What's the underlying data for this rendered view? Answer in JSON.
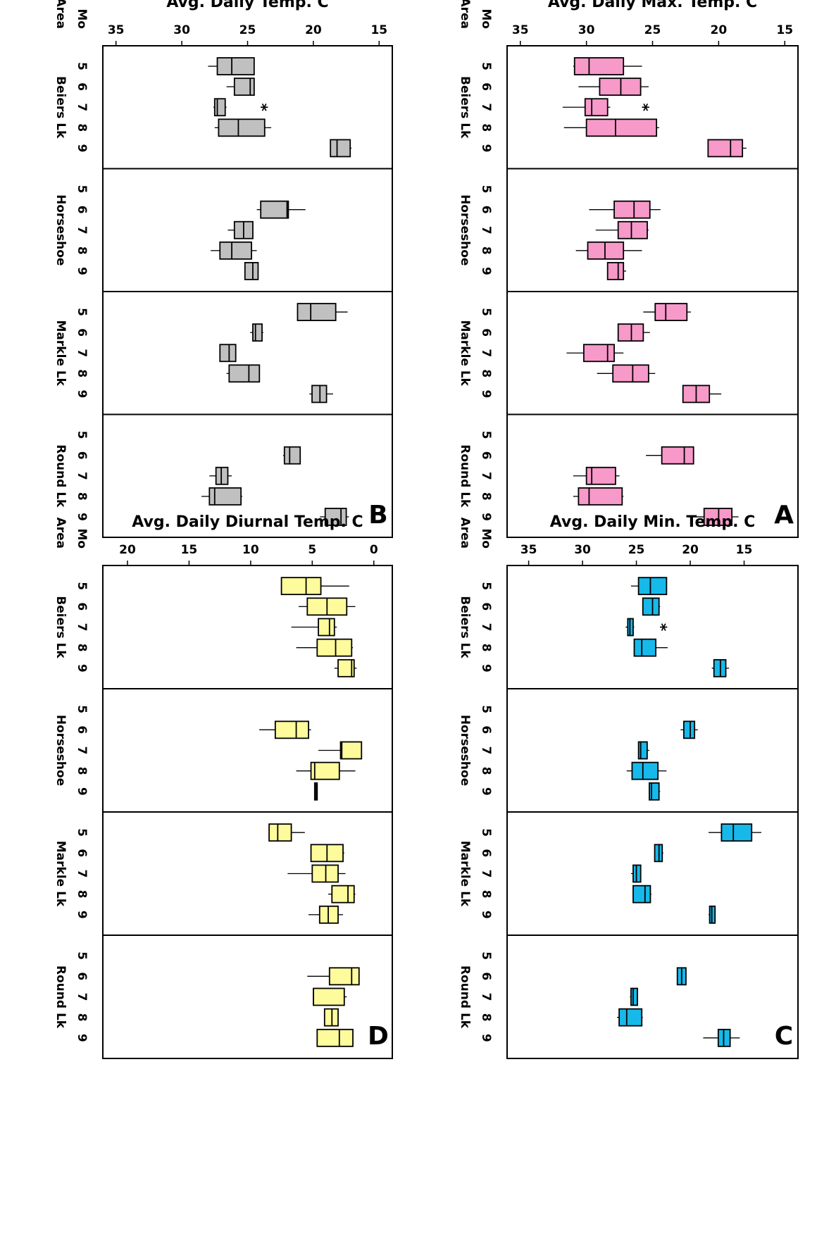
{
  "chart_data": [
    {
      "panel_label": "A",
      "type": "boxplot",
      "ylabel": "Avg. Daily Max. Temp. C",
      "xlabel_rows": [
        "Mo",
        "Area"
      ],
      "ylim": [
        14,
        36
      ],
      "yticks": [
        15,
        20,
        25,
        30,
        35
      ],
      "box_color": "#f799c9",
      "areas": [
        {
          "name": "Beiers Lk",
          "months": [
            {
              "mo": "5",
              "low": 25.8,
              "q1": 27.2,
              "median": 29.8,
              "q3": 30.9,
              "high": 31.0
            },
            {
              "mo": "6",
              "low": 25.3,
              "q1": 25.9,
              "median": 27.4,
              "q3": 29.0,
              "high": 30.6
            },
            {
              "mo": "7",
              "low": 28.2,
              "q1": 28.4,
              "median": 29.6,
              "q3": 30.1,
              "high": 31.8,
              "outliers": [
                25.8
              ]
            },
            {
              "mo": "8",
              "low": 24.5,
              "q1": 24.7,
              "median": 27.8,
              "q3": 30.0,
              "high": 31.7
            },
            {
              "mo": "9",
              "low": 17.9,
              "q1": 18.2,
              "median": 19.1,
              "q3": 20.8,
              "high": 20.8
            }
          ]
        },
        {
          "name": "Horseshoe",
          "months": [
            {
              "mo": "5"
            },
            {
              "mo": "6",
              "low": 24.4,
              "q1": 25.2,
              "median": 26.4,
              "q3": 27.9,
              "high": 29.8
            },
            {
              "mo": "7",
              "low": 25.3,
              "q1": 25.4,
              "median": 26.6,
              "q3": 27.6,
              "high": 29.3
            },
            {
              "mo": "8",
              "low": 25.8,
              "q1": 27.2,
              "median": 28.6,
              "q3": 29.9,
              "high": 30.8
            },
            {
              "mo": "9",
              "low": 27.0,
              "q1": 27.2,
              "median": 27.6,
              "q3": 28.4,
              "high": 28.4
            }
          ]
        },
        {
          "name": "Markle Lk",
          "months": [
            {
              "mo": "5",
              "low": 22.1,
              "q1": 22.4,
              "median": 24.0,
              "q3": 24.8,
              "high": 25.7
            },
            {
              "mo": "6",
              "low": 25.2,
              "q1": 25.7,
              "median": 26.6,
              "q3": 27.6,
              "high": 27.6
            },
            {
              "mo": "7",
              "low": 27.2,
              "q1": 27.9,
              "median": 28.4,
              "q3": 30.2,
              "high": 31.5
            },
            {
              "mo": "8",
              "low": 24.8,
              "q1": 25.3,
              "median": 26.5,
              "q3": 28.0,
              "high": 29.2
            },
            {
              "mo": "9",
              "low": 19.8,
              "q1": 20.7,
              "median": 21.7,
              "q3": 22.7,
              "high": 22.7
            }
          ]
        },
        {
          "name": "Round Lk",
          "months": [
            {
              "mo": "5"
            },
            {
              "mo": "6",
              "low": 21.9,
              "q1": 21.9,
              "median": 22.6,
              "q3": 24.3,
              "high": 25.5
            },
            {
              "mo": "7",
              "low": 27.5,
              "q1": 27.8,
              "median": 29.6,
              "q3": 30.0,
              "high": 31.0
            },
            {
              "mo": "8",
              "low": 27.2,
              "q1": 27.3,
              "median": 29.8,
              "q3": 30.6,
              "high": 31.0
            },
            {
              "mo": "9",
              "low": 18.5,
              "q1": 19.0,
              "median": 20.0,
              "q3": 21.1,
              "high": 22.3
            }
          ]
        }
      ]
    },
    {
      "panel_label": "B",
      "type": "boxplot",
      "ylabel": "Avg. Daily Temp. C",
      "xlabel_rows": [
        "Mo",
        "Area"
      ],
      "ylim": [
        14,
        36
      ],
      "yticks": [
        15,
        20,
        25,
        30,
        35
      ],
      "box_color": "#c0c0c0",
      "areas": [
        {
          "name": "Beiers Lk",
          "months": [
            {
              "mo": "5",
              "low": 24.5,
              "q1": 24.5,
              "median": 26.2,
              "q3": 27.3,
              "high": 28.0
            },
            {
              "mo": "6",
              "low": 24.5,
              "q1": 24.5,
              "median": 24.8,
              "q3": 26.0,
              "high": 26.6
            },
            {
              "mo": "7",
              "low": 26.6,
              "q1": 26.7,
              "median": 27.3,
              "q3": 27.5,
              "high": 27.6,
              "outliers": [
                24.0
              ]
            },
            {
              "mo": "8",
              "low": 23.2,
              "q1": 23.7,
              "median": 25.7,
              "q3": 27.2,
              "high": 27.5
            },
            {
              "mo": "9",
              "low": 17.1,
              "q1": 17.2,
              "median": 18.2,
              "q3": 18.7,
              "high": 18.7
            }
          ]
        },
        {
          "name": "Horseshoe",
          "months": [
            {
              "mo": "5"
            },
            {
              "mo": "6",
              "low": 20.6,
              "q1": 21.9,
              "median": 22.0,
              "q3": 24.0,
              "high": 24.3
            },
            {
              "mo": "7",
              "low": 24.6,
              "q1": 24.6,
              "median": 25.3,
              "q3": 26.0,
              "high": 26.5
            },
            {
              "mo": "8",
              "low": 24.3,
              "q1": 24.7,
              "median": 26.2,
              "q3": 27.1,
              "high": 27.8
            },
            {
              "mo": "9",
              "low": 24.2,
              "q1": 24.2,
              "median": 24.6,
              "q3": 25.2,
              "high": 25.2
            }
          ]
        },
        {
          "name": "Markle Lk",
          "months": [
            {
              "mo": "5",
              "low": 17.4,
              "q1": 18.3,
              "median": 20.2,
              "q3": 21.2,
              "high": 21.2
            },
            {
              "mo": "6",
              "low": 23.8,
              "q1": 23.9,
              "median": 24.4,
              "q3": 24.6,
              "high": 24.8
            },
            {
              "mo": "7",
              "low": 25.9,
              "q1": 25.9,
              "median": 26.4,
              "q3": 27.1,
              "high": 27.1
            },
            {
              "mo": "8",
              "low": 24.1,
              "q1": 24.1,
              "median": 24.9,
              "q3": 26.4,
              "high": 26.6
            },
            {
              "mo": "9",
              "low": 18.5,
              "q1": 19.0,
              "median": 19.5,
              "q3": 20.1,
              "high": 20.3
            }
          ]
        },
        {
          "name": "Round Lk",
          "months": [
            {
              "mo": "5"
            },
            {
              "mo": "6",
              "low": 21.0,
              "q1": 21.0,
              "median": 21.8,
              "q3": 22.2,
              "high": 22.3
            },
            {
              "mo": "7",
              "low": 26.2,
              "q1": 26.5,
              "median": 27.0,
              "q3": 27.4,
              "high": 27.9
            },
            {
              "mo": "8",
              "low": 25.4,
              "q1": 25.5,
              "median": 27.5,
              "q3": 27.9,
              "high": 28.5
            },
            {
              "mo": "9",
              "low": 17.3,
              "q1": 17.5,
              "median": 17.9,
              "q3": 19.1,
              "high": 19.5
            }
          ]
        }
      ]
    },
    {
      "panel_label": "C",
      "type": "boxplot",
      "ylabel": "Avg. Daily Min. Temp. C",
      "xlabel_rows": [
        "Mo",
        "Area"
      ],
      "ylim": [
        10,
        37
      ],
      "yticks": [
        15,
        20,
        25,
        30,
        35
      ],
      "box_color": "#17b9ea",
      "areas": [
        {
          "name": "Beiers Lk",
          "months": [
            {
              "mo": "5",
              "low": 22.2,
              "q1": 22.2,
              "median": 23.7,
              "q3": 24.8,
              "high": 25.5
            },
            {
              "mo": "6",
              "low": 22.8,
              "q1": 22.9,
              "median": 23.5,
              "q3": 24.4,
              "high": 24.4
            },
            {
              "mo": "7",
              "low": 25.2,
              "q1": 25.3,
              "median": 25.6,
              "q3": 25.8,
              "high": 26.0,
              "outliers": [
                22.8
              ]
            },
            {
              "mo": "8",
              "low": 22.1,
              "q1": 23.2,
              "median": 24.5,
              "q3": 25.2,
              "high": 25.2
            },
            {
              "mo": "9",
              "low": 16.4,
              "q1": 16.7,
              "median": 17.2,
              "q3": 17.8,
              "high": 18.0
            }
          ]
        },
        {
          "name": "Horseshoe",
          "months": [
            {
              "mo": "5"
            },
            {
              "mo": "6",
              "low": 19.3,
              "q1": 19.6,
              "median": 20.0,
              "q3": 20.6,
              "high": 20.9
            },
            {
              "mo": "7",
              "low": 23.8,
              "q1": 24.0,
              "median": 24.6,
              "q3": 24.8,
              "high": 24.8
            },
            {
              "mo": "8",
              "low": 22.2,
              "q1": 23.0,
              "median": 24.4,
              "q3": 25.4,
              "high": 25.9
            },
            {
              "mo": "9",
              "low": 22.8,
              "q1": 22.9,
              "median": 23.6,
              "q3": 23.8,
              "high": 23.8
            }
          ]
        },
        {
          "name": "Markle Lk",
          "months": [
            {
              "mo": "5",
              "low": 13.4,
              "q1": 14.3,
              "median": 16.0,
              "q3": 17.1,
              "high": 18.3
            },
            {
              "mo": "6",
              "low": 22.5,
              "q1": 22.6,
              "median": 22.9,
              "q3": 23.3,
              "high": 23.3
            },
            {
              "mo": "7",
              "low": 24.6,
              "q1": 24.6,
              "median": 25.0,
              "q3": 25.3,
              "high": 25.5
            },
            {
              "mo": "8",
              "low": 23.6,
              "q1": 23.7,
              "median": 24.2,
              "q3": 25.3,
              "high": 25.3
            },
            {
              "mo": "9",
              "low": 17.7,
              "q1": 17.7,
              "median": 18.0,
              "q3": 18.2,
              "high": 18.3
            }
          ]
        },
        {
          "name": "Round Lk",
          "months": [
            {
              "mo": "5"
            },
            {
              "mo": "6",
              "low": 20.4,
              "q1": 20.4,
              "median": 20.8,
              "q3": 21.2,
              "high": 21.2
            },
            {
              "mo": "7",
              "low": 24.9,
              "q1": 24.9,
              "median": 25.3,
              "q3": 25.5,
              "high": 25.6
            },
            {
              "mo": "8",
              "low": 24.4,
              "q1": 24.5,
              "median": 25.9,
              "q3": 26.6,
              "high": 26.8
            },
            {
              "mo": "9",
              "low": 15.4,
              "q1": 16.3,
              "median": 16.9,
              "q3": 17.4,
              "high": 18.8
            }
          ]
        }
      ]
    },
    {
      "panel_label": "D",
      "type": "boxplot",
      "ylabel": "Avg. Daily Diurnal Temp. C",
      "xlabel_rows": [
        "Mo",
        "Area"
      ],
      "ylim": [
        -1.5,
        22
      ],
      "yticks": [
        0,
        5,
        10,
        15,
        20
      ],
      "box_color": "#fdfb9b",
      "areas": [
        {
          "name": "Beiers Lk",
          "months": [
            {
              "mo": "5",
              "low": 2.0,
              "q1": 4.3,
              "median": 5.5,
              "q3": 7.5,
              "high": 7.5
            },
            {
              "mo": "6",
              "low": 1.5,
              "q1": 2.2,
              "median": 3.8,
              "q3": 5.4,
              "high": 6.1
            },
            {
              "mo": "7",
              "low": 3.0,
              "q1": 3.2,
              "median": 3.6,
              "q3": 4.5,
              "high": 6.7
            },
            {
              "mo": "8",
              "low": 1.7,
              "q1": 1.8,
              "median": 3.1,
              "q3": 4.6,
              "high": 6.3
            },
            {
              "mo": "9",
              "low": 1.4,
              "q1": 1.6,
              "median": 1.8,
              "q3": 2.9,
              "high": 3.2
            }
          ]
        },
        {
          "name": "Horseshoe",
          "months": [
            {
              "mo": "5"
            },
            {
              "mo": "6",
              "low": 5.1,
              "q1": 5.3,
              "median": 6.3,
              "q3": 8.0,
              "high": 9.3
            },
            {
              "mo": "7",
              "low": 1.0,
              "q1": 1.0,
              "median": 2.6,
              "q3": 2.7,
              "high": 4.5
            },
            {
              "mo": "8",
              "low": 1.5,
              "q1": 2.8,
              "median": 4.8,
              "q3": 5.1,
              "high": 6.3
            },
            {
              "mo": "9",
              "low": 4.6,
              "q1": 4.6,
              "median": 4.7,
              "q3": 4.8,
              "high": 4.8
            }
          ]
        },
        {
          "name": "Markle Lk",
          "months": [
            {
              "mo": "5",
              "low": 5.6,
              "q1": 6.7,
              "median": 7.8,
              "q3": 8.5,
              "high": 8.5
            },
            {
              "mo": "6",
              "low": 2.4,
              "q1": 2.5,
              "median": 3.8,
              "q3": 5.1,
              "high": 5.1
            },
            {
              "mo": "7",
              "low": 2.3,
              "q1": 2.9,
              "median": 3.9,
              "q3": 5.0,
              "high": 7.0
            },
            {
              "mo": "8",
              "low": 1.5,
              "q1": 1.6,
              "median": 2.1,
              "q3": 3.4,
              "high": 3.7
            },
            {
              "mo": "9",
              "low": 2.5,
              "q1": 2.9,
              "median": 3.7,
              "q3": 4.4,
              "high": 5.3
            }
          ]
        },
        {
          "name": "Round Lk",
          "months": [
            {
              "mo": "5"
            },
            {
              "mo": "6",
              "low": 1.2,
              "q1": 1.2,
              "median": 1.8,
              "q3": 3.6,
              "high": 5.4
            },
            {
              "mo": "7",
              "low": 2.2,
              "q1": 2.4,
              "median": 4.9,
              "q3": 4.9,
              "high": 4.9
            },
            {
              "mo": "8",
              "low": 2.9,
              "q1": 2.9,
              "median": 3.4,
              "q3": 4.0,
              "high": 4.0
            },
            {
              "mo": "9",
              "low": 1.7,
              "q1": 1.7,
              "median": 2.8,
              "q3": 4.6,
              "high": 4.6
            }
          ]
        }
      ]
    }
  ]
}
